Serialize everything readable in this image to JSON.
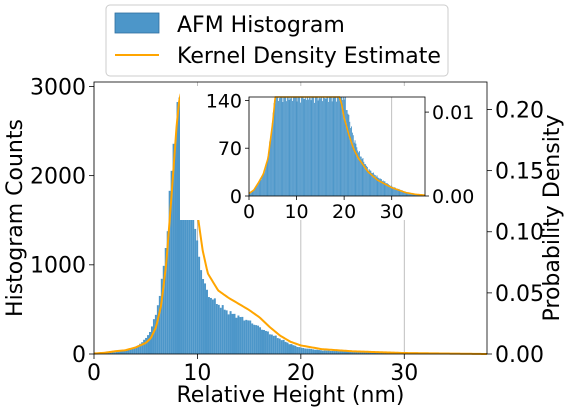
{
  "chart_data": [
    {
      "type": "histogram",
      "role": "main",
      "xlabel": "Relative Height (nm)",
      "ylabel": "Histogram Counts",
      "y2label": "Probability Density",
      "xlim": [
        0,
        38
      ],
      "ylim": [
        0,
        3050
      ],
      "y2lim": [
        0,
        0.2225
      ],
      "xticks": [
        0,
        10,
        20,
        30
      ],
      "yticks": [
        0,
        1000,
        2000,
        3000
      ],
      "y2ticks": [
        0.0,
        0.05,
        0.1,
        0.15,
        0.2
      ],
      "y2ticklabels": [
        "0.00",
        "0.05",
        "0.10",
        "0.15",
        "0.20"
      ],
      "grid": "x only",
      "legend_position": "top, above plot",
      "series": [
        {
          "name": "AFM Histogram",
          "kind": "histogram",
          "axis": "left",
          "color": "#4c96c9",
          "bin_width": 0.2,
          "bins": [
            [
              0,
              5
            ],
            [
              1,
              10
            ],
            [
              2,
              20
            ],
            [
              3,
              35
            ],
            [
              4,
              70
            ],
            [
              5,
              170
            ],
            [
              5.5,
              270
            ],
            [
              6,
              450
            ],
            [
              6.5,
              750
            ],
            [
              7,
              1250
            ],
            [
              7.5,
              2050
            ],
            [
              8,
              2700
            ],
            [
              8.3,
              2900
            ],
            [
              8.6,
              2880
            ],
            [
              9,
              2450
            ],
            [
              9.5,
              1700
            ],
            [
              10,
              1200
            ],
            [
              10.5,
              870
            ],
            [
              11,
              670
            ],
            [
              12,
              560
            ],
            [
              13,
              470
            ],
            [
              14,
              420
            ],
            [
              15,
              370
            ],
            [
              16,
              300
            ],
            [
              17,
              230
            ],
            [
              18,
              170
            ],
            [
              19,
              110
            ],
            [
              20,
              70
            ],
            [
              22,
              40
            ],
            [
              25,
              25
            ],
            [
              30,
              10
            ],
            [
              35,
              3
            ],
            [
              38,
              0
            ]
          ]
        },
        {
          "name": "Kernel Density Estimate",
          "kind": "line",
          "axis": "right",
          "color": "#ffa500",
          "points": [
            [
              0,
              0.0004
            ],
            [
              1,
              0.001
            ],
            [
              2,
              0.0022
            ],
            [
              3,
              0.003
            ],
            [
              4,
              0.0053
            ],
            [
              5,
              0.009
            ],
            [
              5.5,
              0.013
            ],
            [
              6,
              0.022
            ],
            [
              6.5,
              0.04
            ],
            [
              7,
              0.075
            ],
            [
              7.5,
              0.13
            ],
            [
              8,
              0.188
            ],
            [
              8.3,
              0.212
            ],
            [
              8.6,
              0.21
            ],
            [
              9,
              0.19
            ],
            [
              9.5,
              0.155
            ],
            [
              10,
              0.115
            ],
            [
              10.5,
              0.085
            ],
            [
              11,
              0.066
            ],
            [
              12,
              0.052
            ],
            [
              13,
              0.046
            ],
            [
              14,
              0.041
            ],
            [
              15,
              0.036
            ],
            [
              16,
              0.03
            ],
            [
              17,
              0.022
            ],
            [
              18,
              0.015
            ],
            [
              19,
              0.01
            ],
            [
              20,
              0.007
            ],
            [
              22,
              0.004
            ],
            [
              25,
              0.0022
            ],
            [
              30,
              0.0008
            ],
            [
              35,
              0.0003
            ],
            [
              38,
              0
            ]
          ]
        }
      ]
    },
    {
      "type": "histogram",
      "role": "inset",
      "xlim": [
        0,
        37
      ],
      "ylim": [
        0,
        145
      ],
      "y2lim": [
        0,
        0.0118
      ],
      "xticks": [
        0,
        10,
        20,
        30
      ],
      "yticks": [
        0,
        70,
        140
      ],
      "y2ticks": [
        0.0,
        0.01
      ],
      "y2ticklabels": [
        "0.00",
        "0.01"
      ],
      "grid": "x only",
      "series": [
        {
          "name": "AFM Histogram",
          "kind": "histogram",
          "axis": "left",
          "color": "#4c96c9",
          "bins": [
            [
              0,
              3
            ],
            [
              1,
              8
            ],
            [
              2,
              20
            ],
            [
              3,
              30
            ],
            [
              4,
              55
            ],
            [
              5,
              115
            ],
            [
              5.5,
              145
            ],
            [
              20,
              145
            ],
            [
              20.5,
              130
            ],
            [
              21,
              115
            ],
            [
              22,
              85
            ],
            [
              23,
              65
            ],
            [
              25,
              40
            ],
            [
              27,
              28
            ],
            [
              30,
              14
            ],
            [
              33,
              6
            ],
            [
              35,
              3
            ],
            [
              37,
              1
            ]
          ]
        },
        {
          "name": "Kernel Density Estimate",
          "kind": "line",
          "axis": "right",
          "color": "#ffa500",
          "points": [
            [
              0,
              0.0003
            ],
            [
              1,
              0.0007
            ],
            [
              2,
              0.0016
            ],
            [
              3,
              0.0026
            ],
            [
              4,
              0.0045
            ],
            [
              5,
              0.0088
            ],
            [
              5.5,
              0.0118
            ],
            [
              19,
              0.0118
            ],
            [
              19.5,
              0.0109
            ],
            [
              20,
              0.0093
            ],
            [
              21,
              0.0073
            ],
            [
              22,
              0.0056
            ],
            [
              23,
              0.0045
            ],
            [
              25,
              0.0029
            ],
            [
              27,
              0.0019
            ],
            [
              30,
              0.001
            ],
            [
              33,
              0.0004
            ],
            [
              35,
              0.0002
            ],
            [
              37,
              0.0001
            ]
          ]
        }
      ]
    }
  ],
  "legend": [
    {
      "label": "AFM Histogram",
      "color": "#4c96c9",
      "kind": "patch"
    },
    {
      "label": "Kernel Density Estimate",
      "color": "#ffa500",
      "kind": "line"
    }
  ]
}
